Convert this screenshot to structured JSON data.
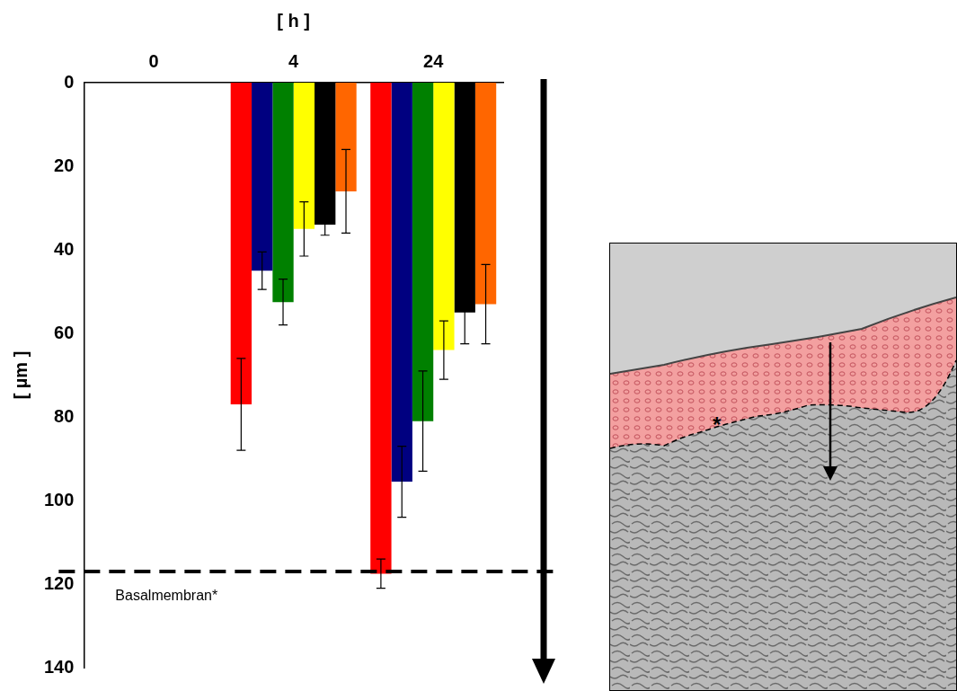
{
  "chart_data": {
    "type": "bar",
    "x_label": "[ h ]",
    "y_label": "[ µm ]",
    "categories": [
      "0",
      "4",
      "24"
    ],
    "series": [
      {
        "color": "#ff0000",
        "values": [
          null,
          77,
          117.5
        ],
        "errors": [
          null,
          11,
          3.5
        ]
      },
      {
        "color": "#000080",
        "values": [
          null,
          45,
          95.5
        ],
        "errors": [
          null,
          4.5,
          8.5
        ]
      },
      {
        "color": "#008000",
        "values": [
          null,
          52.5,
          81
        ],
        "errors": [
          null,
          5.5,
          12
        ]
      },
      {
        "color": "#ffff00",
        "values": [
          null,
          35,
          64
        ],
        "errors": [
          null,
          6.5,
          7
        ]
      },
      {
        "color": "#000000",
        "values": [
          null,
          34,
          55
        ],
        "errors": [
          null,
          2.5,
          7.5
        ]
      },
      {
        "color": "#ff6600",
        "values": [
          null,
          26,
          53
        ],
        "errors": [
          null,
          10,
          9.5
        ]
      }
    ],
    "ylim": [
      0,
      140
    ],
    "yticks": [
      0,
      20,
      40,
      60,
      80,
      100,
      120,
      140
    ],
    "grid": false,
    "reference_line": {
      "value": 117,
      "label": "Basalmembran*"
    }
  },
  "image": {
    "marker": "*"
  }
}
